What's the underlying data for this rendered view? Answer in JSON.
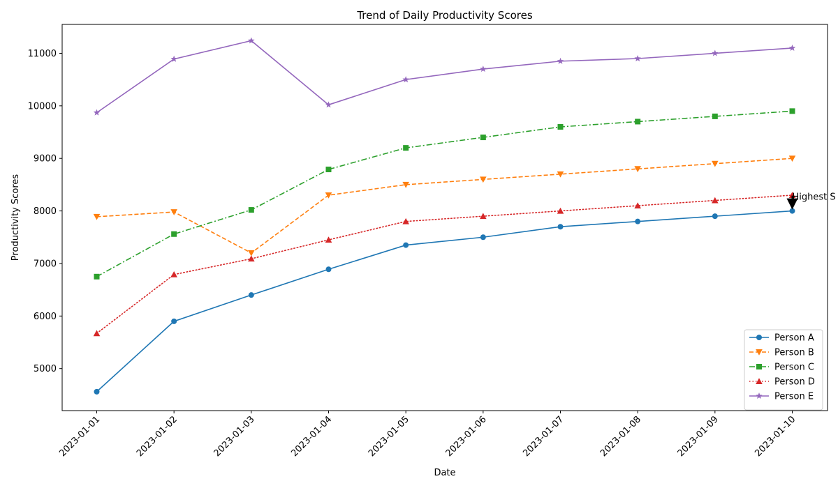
{
  "chart_data": {
    "type": "line",
    "title": "Trend of Daily Productivity Scores",
    "xlabel": "Date",
    "ylabel": "Productivity Scores",
    "x": [
      "2023-01-01",
      "2023-01-02",
      "2023-01-03",
      "2023-01-04",
      "2023-01-05",
      "2023-01-06",
      "2023-01-07",
      "2023-01-08",
      "2023-01-09",
      "2023-01-10"
    ],
    "ylim": [
      4200,
      11550
    ],
    "yticks": [
      5000,
      6000,
      7000,
      8000,
      9000,
      10000,
      11000
    ],
    "grid": false,
    "legend_position": "bottom-right",
    "series": [
      {
        "name": "Person A",
        "color": "#1f77b4",
        "line_style": "solid",
        "marker": "circle",
        "values": [
          4560,
          5900,
          6400,
          6890,
          7350,
          7500,
          7700,
          7800,
          7900,
          8000
        ]
      },
      {
        "name": "Person B",
        "color": "#ff7f0e",
        "line_style": "dashed",
        "marker": "triangle-down",
        "values": [
          7890,
          7980,
          7200,
          8300,
          8500,
          8600,
          8700,
          8800,
          8900,
          9000
        ]
      },
      {
        "name": "Person C",
        "color": "#2ca02c",
        "line_style": "dashdot",
        "marker": "square",
        "values": [
          6750,
          7560,
          8020,
          8790,
          9200,
          9400,
          9600,
          9700,
          9800,
          9900
        ]
      },
      {
        "name": "Person D",
        "color": "#d62728",
        "line_style": "dotted",
        "marker": "triangle-up",
        "values": [
          5670,
          6790,
          7090,
          7450,
          7800,
          7900,
          8000,
          8100,
          8200,
          8300
        ]
      },
      {
        "name": "Person E",
        "color": "#9467bd",
        "line_style": "solid",
        "marker": "star",
        "values": [
          9870,
          10890,
          11240,
          10020,
          10500,
          10700,
          10850,
          10900,
          11000,
          11100
        ]
      }
    ],
    "annotations": [
      {
        "text": "Highest S",
        "x": "2023-01-10",
        "y": 8000
      }
    ]
  }
}
